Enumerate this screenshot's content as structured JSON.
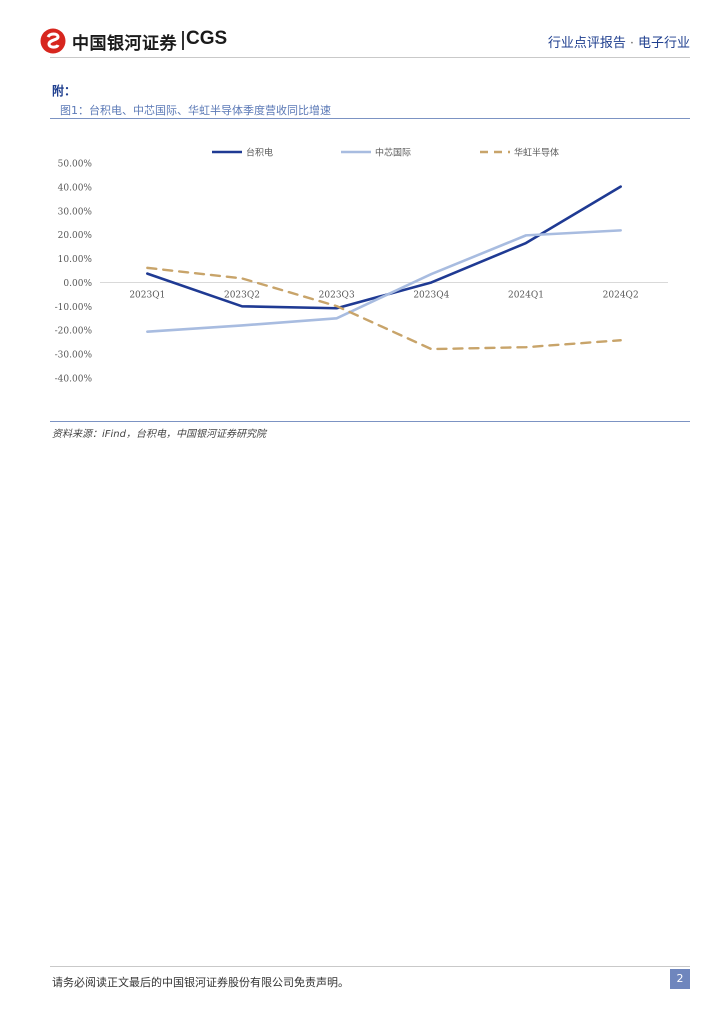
{
  "header": {
    "logo_cn": "中国银河证券",
    "logo_en": "CGS",
    "report_type": "行业点评报告",
    "separator": "·",
    "industry": "电子行业"
  },
  "section": {
    "appendix": "附："
  },
  "figure": {
    "title": "图1：台积电、中芯国际、华虹半导体季度营收同比增速",
    "source": "资料来源：iFind，台积电，中国银河证券研究院"
  },
  "chart_data": {
    "type": "line",
    "categories": [
      "2023Q1",
      "2023Q2",
      "2023Q3",
      "2023Q4",
      "2024Q1",
      "2024Q2"
    ],
    "ylim": [
      -40,
      50
    ],
    "yticks": [
      50,
      40,
      30,
      20,
      10,
      0,
      -10,
      -20,
      -30,
      -40
    ],
    "ytick_labels": [
      "50.00%",
      "40.00%",
      "30.00%",
      "20.00%",
      "10.00%",
      "0.00%",
      "-10.00%",
      "-20.00%",
      "-30.00%",
      "-40.00%"
    ],
    "legend_position": "top",
    "series": [
      {
        "name": "台积电",
        "values": [
          3.7,
          -10.0,
          -10.8,
          0.0,
          16.5,
          40.1
        ],
        "color": "#1f3a93",
        "style": "solid"
      },
      {
        "name": "中芯国际",
        "values": [
          -20.6,
          -18.0,
          -15.0,
          3.5,
          19.7,
          21.8
        ],
        "color": "#a8bce0",
        "style": "solid"
      },
      {
        "name": "华虹半导体",
        "values": [
          6.1,
          1.7,
          -9.9,
          -27.9,
          -27.1,
          -24.2
        ],
        "color": "#c8a46a",
        "style": "dashed"
      }
    ]
  },
  "footer": {
    "disclaimer": "请务必阅读正文最后的中国银河证券股份有限公司免责声明。",
    "page": "2"
  }
}
